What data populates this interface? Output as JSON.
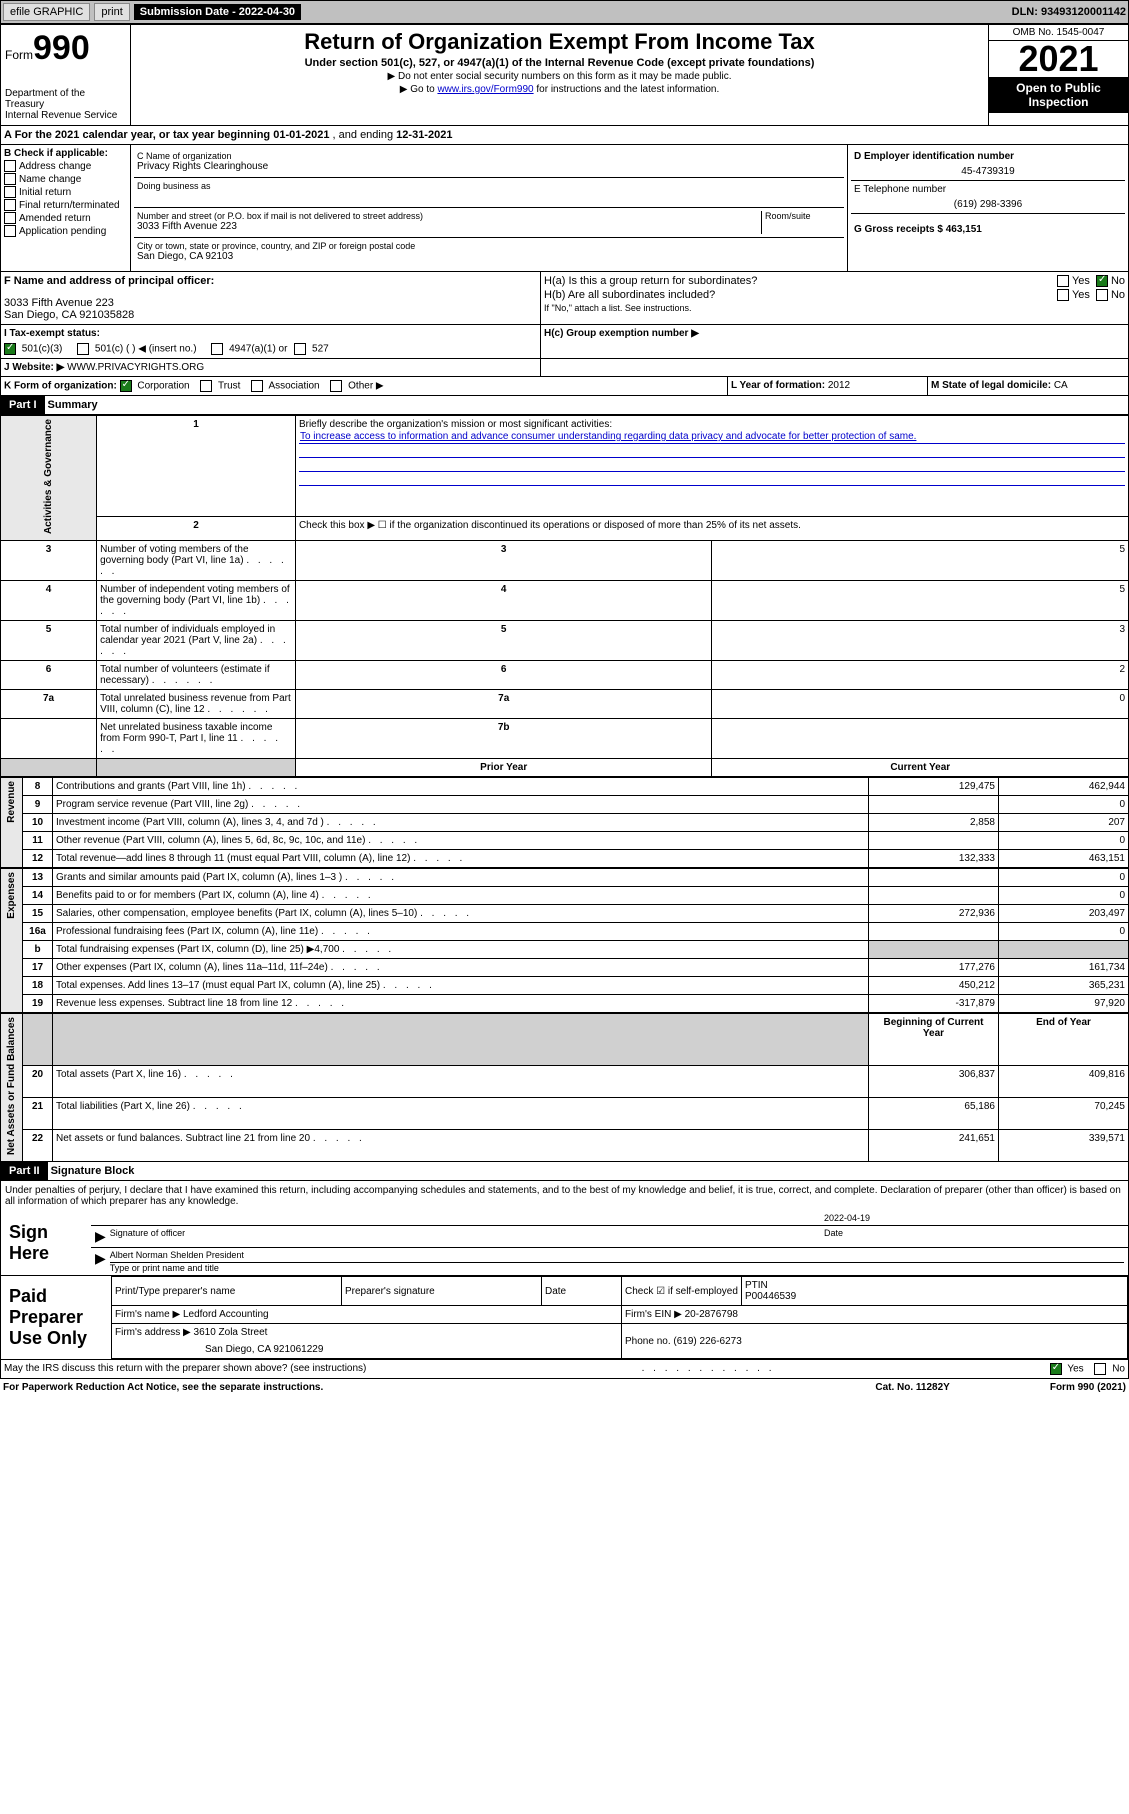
{
  "topbar": {
    "efile": "efile GRAPHIC",
    "print": "print",
    "sub_label": "Submission Date - 2022-04-30",
    "dln": "DLN: 93493120001142"
  },
  "header": {
    "form_label": "Form",
    "form_num": "990",
    "dept": "Department of the Treasury",
    "irs": "Internal Revenue Service",
    "title": "Return of Organization Exempt From Income Tax",
    "subtitle": "Under section 501(c), 527, or 4947(a)(1) of the Internal Revenue Code (except private foundations)",
    "note1": "▶ Do not enter social security numbers on this form as it may be made public.",
    "note2_pre": "▶ Go to ",
    "note2_link": "www.irs.gov/Form990",
    "note2_post": " for instructions and the latest information.",
    "omb": "OMB No. 1545-0047",
    "year": "2021",
    "inspection": "Open to Public Inspection"
  },
  "period": {
    "label_a": "A For the 2021 calendar year, or tax year beginning ",
    "begin": "01-01-2021",
    "mid": " , and ending ",
    "end": "12-31-2021"
  },
  "section_b": {
    "label": "B Check if applicable:",
    "items": [
      "Address change",
      "Name change",
      "Initial return",
      "Final return/terminated",
      "Amended return",
      "Application pending"
    ]
  },
  "section_c": {
    "name_label": "C Name of organization",
    "name": "Privacy Rights Clearinghouse",
    "dba_label": "Doing business as",
    "dba": "",
    "addr_label": "Number and street (or P.O. box if mail is not delivered to street address)",
    "room_label": "Room/suite",
    "addr": "3033 Fifth Avenue 223",
    "city_label": "City or town, state or province, country, and ZIP or foreign postal code",
    "city": "San Diego, CA  92103"
  },
  "section_d": {
    "label": "D Employer identification number",
    "value": "45-4739319"
  },
  "section_e": {
    "label": "E Telephone number",
    "value": "(619) 298-3396"
  },
  "section_g": {
    "label": "G Gross receipts $",
    "value": "463,151"
  },
  "section_f": {
    "label": "F Name and address of principal officer:",
    "addr1": "3033 Fifth Avenue 223",
    "addr2": "San Diego, CA  921035828"
  },
  "section_h": {
    "a_label": "H(a)  Is this a group return for subordinates?",
    "yes": "Yes",
    "no": "No",
    "b_label": "H(b)  Are all subordinates included?",
    "b_note": "If \"No,\" attach a list. See instructions.",
    "c_label": "H(c)  Group exemption number ▶"
  },
  "section_i": {
    "label": "I  Tax-exempt status:",
    "opt1": "501(c)(3)",
    "opt2": "501(c) (   ) ◀ (insert no.)",
    "opt3": "4947(a)(1) or",
    "opt4": "527"
  },
  "section_j": {
    "label": "J  Website: ▶",
    "value": "WWW.PRIVACYRIGHTS.ORG"
  },
  "section_k": {
    "label": "K Form of organization:",
    "corp": "Corporation",
    "trust": "Trust",
    "assoc": "Association",
    "other": "Other ▶"
  },
  "section_l": {
    "label": "L Year of formation:",
    "value": "2012"
  },
  "section_m": {
    "label": "M State of legal domicile:",
    "value": "CA"
  },
  "part1": {
    "header": "Part I",
    "title": "Summary"
  },
  "summary": {
    "q1": "Briefly describe the organization's mission or most significant activities:",
    "mission": "To increase access to information and advance consumer understanding regarding data privacy and advocate for better protection of same.",
    "q2": "Check this box ▶ ☐  if the organization discontinued its operations or disposed of more than 25% of its net assets.",
    "rows_gov": [
      {
        "n": "3",
        "d": "Number of voting members of the governing body (Part VI, line 1a)",
        "l": "3",
        "v": "5"
      },
      {
        "n": "4",
        "d": "Number of independent voting members of the governing body (Part VI, line 1b)",
        "l": "4",
        "v": "5"
      },
      {
        "n": "5",
        "d": "Total number of individuals employed in calendar year 2021 (Part V, line 2a)",
        "l": "5",
        "v": "3"
      },
      {
        "n": "6",
        "d": "Total number of volunteers (estimate if necessary)",
        "l": "6",
        "v": "2"
      },
      {
        "n": "7a",
        "d": "Total unrelated business revenue from Part VIII, column (C), line 12",
        "l": "7a",
        "v": "0"
      },
      {
        "n": "",
        "d": "Net unrelated business taxable income from Form 990-T, Part I, line 11",
        "l": "7b",
        "v": ""
      }
    ],
    "prior_label": "Prior Year",
    "current_label": "Current Year",
    "rows_rev": [
      {
        "n": "8",
        "d": "Contributions and grants (Part VIII, line 1h)",
        "p": "129,475",
        "c": "462,944"
      },
      {
        "n": "9",
        "d": "Program service revenue (Part VIII, line 2g)",
        "p": "",
        "c": "0"
      },
      {
        "n": "10",
        "d": "Investment income (Part VIII, column (A), lines 3, 4, and 7d )",
        "p": "2,858",
        "c": "207"
      },
      {
        "n": "11",
        "d": "Other revenue (Part VIII, column (A), lines 5, 6d, 8c, 9c, 10c, and 11e)",
        "p": "",
        "c": "0"
      },
      {
        "n": "12",
        "d": "Total revenue—add lines 8 through 11 (must equal Part VIII, column (A), line 12)",
        "p": "132,333",
        "c": "463,151"
      }
    ],
    "rows_exp": [
      {
        "n": "13",
        "d": "Grants and similar amounts paid (Part IX, column (A), lines 1–3 )",
        "p": "",
        "c": "0"
      },
      {
        "n": "14",
        "d": "Benefits paid to or for members (Part IX, column (A), line 4)",
        "p": "",
        "c": "0"
      },
      {
        "n": "15",
        "d": "Salaries, other compensation, employee benefits (Part IX, column (A), lines 5–10)",
        "p": "272,936",
        "c": "203,497"
      },
      {
        "n": "16a",
        "d": "Professional fundraising fees (Part IX, column (A), line 11e)",
        "p": "",
        "c": "0"
      },
      {
        "n": "b",
        "d": "Total fundraising expenses (Part IX, column (D), line 25) ▶4,700",
        "p": "grey",
        "c": "grey"
      },
      {
        "n": "17",
        "d": "Other expenses (Part IX, column (A), lines 11a–11d, 11f–24e)",
        "p": "177,276",
        "c": "161,734"
      },
      {
        "n": "18",
        "d": "Total expenses. Add lines 13–17 (must equal Part IX, column (A), line 25)",
        "p": "450,212",
        "c": "365,231"
      },
      {
        "n": "19",
        "d": "Revenue less expenses. Subtract line 18 from line 12",
        "p": "-317,879",
        "c": "97,920"
      }
    ],
    "begin_label": "Beginning of Current Year",
    "end_label": "End of Year",
    "rows_net": [
      {
        "n": "20",
        "d": "Total assets (Part X, line 16)",
        "p": "306,837",
        "c": "409,816"
      },
      {
        "n": "21",
        "d": "Total liabilities (Part X, line 26)",
        "p": "65,186",
        "c": "70,245"
      },
      {
        "n": "22",
        "d": "Net assets or fund balances. Subtract line 21 from line 20",
        "p": "241,651",
        "c": "339,571"
      }
    ],
    "side_gov": "Activities & Governance",
    "side_rev": "Revenue",
    "side_exp": "Expenses",
    "side_net": "Net Assets or Fund Balances"
  },
  "part2": {
    "header": "Part II",
    "title": "Signature Block"
  },
  "sig": {
    "perjury": "Under penalties of perjury, I declare that I have examined this return, including accompanying schedules and statements, and to the best of my knowledge and belief, it is true, correct, and complete. Declaration of preparer (other than officer) is based on all information of which preparer has any knowledge.",
    "sign_here": "Sign Here",
    "sig_officer": "Signature of officer",
    "date_label": "Date",
    "date": "2022-04-19",
    "name": "Albert Norman Shelden  President",
    "name_label": "Type or print name and title",
    "paid": "Paid Preparer Use Only",
    "print_name": "Print/Type preparer's name",
    "prep_sig": "Preparer's signature",
    "check_self": "Check ☑ if self-employed",
    "ptin_label": "PTIN",
    "ptin": "P00446539",
    "firm_name_label": "Firm's name   ▶",
    "firm_name": "Ledford Accounting",
    "firm_ein_label": "Firm's EIN ▶",
    "firm_ein": "20-2876798",
    "firm_addr_label": "Firm's address ▶",
    "firm_addr1": "3610 Zola Street",
    "firm_addr2": "San Diego, CA  921061229",
    "phone_label": "Phone no.",
    "phone": "(619) 226-6273"
  },
  "footer": {
    "discuss": "May the IRS discuss this return with the preparer shown above? (see instructions)",
    "yes": "Yes",
    "no": "No",
    "paperwork": "For Paperwork Reduction Act Notice, see the separate instructions.",
    "cat": "Cat. No. 11282Y",
    "form": "Form 990 (2021)"
  }
}
